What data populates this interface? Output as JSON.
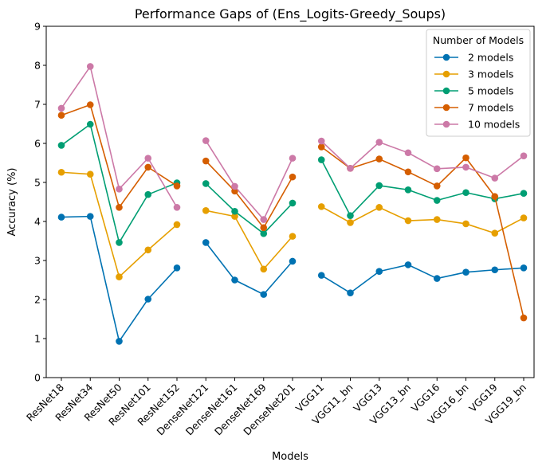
{
  "chart_data": {
    "type": "line",
    "title": "Performance Gaps of (Ens_Logits-Greedy_Soups)",
    "xlabel": "Models",
    "ylabel": "Accuracy (%)",
    "ylim": [
      0,
      9
    ],
    "yticks": [
      "0",
      "1",
      "2",
      "3",
      "4",
      "5",
      "6",
      "7",
      "8",
      "9"
    ],
    "categories": [
      "ResNet18",
      "ResNet34",
      "ResNet50",
      "ResNet101",
      "ResNet152",
      "DenseNet121",
      "DenseNet161",
      "DenseNet169",
      "DenseNet201",
      "VGG11",
      "VGG11_bn",
      "VGG13",
      "VGG13_bn",
      "VGG16",
      "VGG16_bn",
      "VGG19",
      "VGG19_bn"
    ],
    "groups": [
      [
        0,
        4
      ],
      [
        5,
        8
      ],
      [
        9,
        16
      ]
    ],
    "legend_title": "Number of Models",
    "legend_position": "top-right",
    "series": [
      {
        "name": "2 models",
        "color": "#0072b2",
        "values": [
          4.11,
          4.13,
          0.93,
          2.01,
          2.81,
          3.46,
          2.5,
          2.13,
          2.98,
          2.62,
          2.17,
          2.72,
          2.89,
          2.54,
          2.7,
          2.76,
          2.81
        ]
      },
      {
        "name": "3 models",
        "color": "#e69f00",
        "values": [
          5.26,
          5.21,
          2.58,
          3.27,
          3.92,
          4.28,
          4.13,
          2.78,
          3.62,
          4.38,
          3.97,
          4.36,
          4.02,
          4.05,
          3.94,
          3.7,
          4.09
        ]
      },
      {
        "name": "5 models",
        "color": "#009e73",
        "values": [
          5.95,
          6.49,
          3.46,
          4.69,
          4.99,
          4.97,
          4.26,
          3.69,
          4.47,
          5.58,
          4.15,
          4.92,
          4.81,
          4.54,
          4.74,
          4.58,
          4.72
        ]
      },
      {
        "name": "7 models",
        "color": "#d55e00",
        "values": [
          6.72,
          6.99,
          4.36,
          5.39,
          4.91,
          5.55,
          4.78,
          3.84,
          5.14,
          5.91,
          5.36,
          5.6,
          5.27,
          4.91,
          5.63,
          4.64,
          1.53
        ]
      },
      {
        "name": "10 models",
        "color": "#cc79a7",
        "values": [
          6.9,
          7.97,
          4.83,
          5.62,
          4.36,
          6.07,
          4.9,
          4.05,
          5.62,
          6.06,
          5.36,
          6.03,
          5.76,
          5.35,
          5.39,
          5.11,
          5.68
        ]
      }
    ]
  }
}
